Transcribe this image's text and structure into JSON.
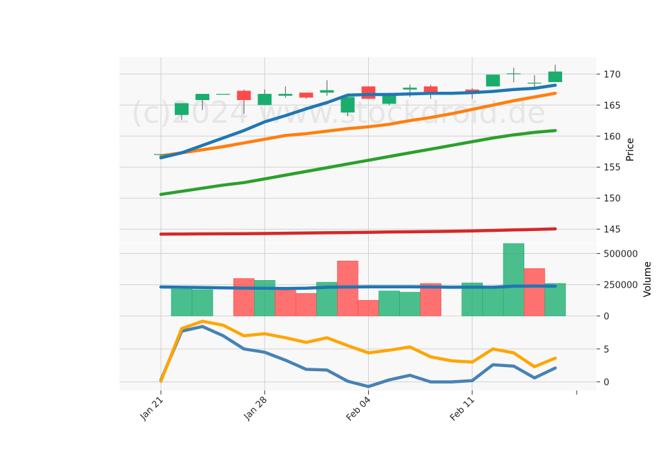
{
  "watermark": "(c)2024 www.stockdroid.de",
  "colors": {
    "up": "#1aad6e",
    "down": "#ff4a4a",
    "sma_short": "#1f77b4",
    "sma_mid": "#ff7f0e",
    "sma_long": "#2ca02c",
    "sma_longest": "#d62728",
    "vol_avg": "#1f77b4",
    "osc_a": "#4682b4",
    "osc_b": "#ffa500",
    "grid": "#d0d0d0",
    "panel_bg": "#f8f8f8"
  },
  "chart_data": [
    {
      "type": "candlestick",
      "ylabel": "Price",
      "ylim": [
        142.8,
        172.7
      ],
      "yticks": [
        145,
        150,
        155,
        160,
        165,
        170
      ],
      "x_labels": [
        "Jan 21",
        "Jan 28",
        "Feb 04",
        "Feb 11"
      ],
      "x_label_index": [
        0,
        5,
        10,
        15
      ],
      "candles": [
        {
          "i": 0,
          "o": 157.1,
          "h": 157.1,
          "l": 157.1,
          "c": 157.1
        },
        {
          "i": 1,
          "o": 163.4,
          "h": 165.3,
          "l": 162.6,
          "c": 165.3
        },
        {
          "i": 2,
          "o": 165.8,
          "h": 166.8,
          "l": 164.2,
          "c": 166.8
        },
        {
          "i": 3,
          "o": 166.8,
          "h": 166.8,
          "l": 166.8,
          "c": 166.8
        },
        {
          "i": 4,
          "o": 167.3,
          "h": 167.5,
          "l": 163.6,
          "c": 165.8
        },
        {
          "i": 5,
          "o": 165.0,
          "h": 167.5,
          "l": 165.0,
          "c": 166.8
        },
        {
          "i": 6,
          "o": 166.5,
          "h": 168.0,
          "l": 166.2,
          "c": 166.8
        },
        {
          "i": 7,
          "o": 167.0,
          "h": 167.0,
          "l": 166.0,
          "c": 166.2
        },
        {
          "i": 8,
          "o": 167.0,
          "h": 169.0,
          "l": 166.5,
          "c": 167.4
        },
        {
          "i": 9,
          "o": 163.8,
          "h": 166.3,
          "l": 163.2,
          "c": 166.3
        },
        {
          "i": 10,
          "o": 168.0,
          "h": 168.0,
          "l": 166.0,
          "c": 166.0
        },
        {
          "i": 11,
          "o": 165.2,
          "h": 167.0,
          "l": 165.0,
          "c": 166.8
        },
        {
          "i": 12,
          "o": 167.5,
          "h": 168.3,
          "l": 166.3,
          "c": 167.8
        },
        {
          "i": 13,
          "o": 168.0,
          "h": 168.3,
          "l": 166.0,
          "c": 167.0
        },
        {
          "i": 15,
          "o": 167.5,
          "h": 167.7,
          "l": 166.0,
          "c": 167.0
        },
        {
          "i": 16,
          "o": 168.0,
          "h": 169.9,
          "l": 168.0,
          "c": 169.9
        },
        {
          "i": 17,
          "o": 170.0,
          "h": 171.0,
          "l": 168.7,
          "c": 170.1
        },
        {
          "i": 18,
          "o": 168.5,
          "h": 169.8,
          "l": 167.6,
          "c": 168.6
        },
        {
          "i": 19,
          "o": 168.7,
          "h": 171.5,
          "l": 168.7,
          "c": 170.4
        }
      ],
      "series": [
        {
          "key": "sma_short",
          "values": [
            156.5,
            157.3,
            158.5,
            159.7,
            160.9,
            162.3,
            163.3,
            164.4,
            165.4,
            166.6,
            166.7,
            166.7,
            166.8,
            166.9,
            166.9,
            167.0,
            167.2,
            167.5,
            167.7,
            168.2
          ]
        },
        {
          "key": "sma_mid",
          "values": [
            156.8,
            157.3,
            157.8,
            158.3,
            158.9,
            159.5,
            160.1,
            160.4,
            160.8,
            161.2,
            161.5,
            161.9,
            162.5,
            163.0,
            163.6,
            164.3,
            165.0,
            165.7,
            166.3,
            166.9
          ]
        },
        {
          "key": "sma_long",
          "values": [
            150.6,
            151.1,
            151.6,
            152.1,
            152.5,
            153.1,
            153.7,
            154.3,
            154.9,
            155.5,
            156.1,
            156.7,
            157.3,
            157.9,
            158.5,
            159.1,
            159.7,
            160.2,
            160.6,
            160.9
          ]
        },
        {
          "key": "sma_longest",
          "values": [
            144.2,
            144.22,
            144.24,
            144.26,
            144.28,
            144.3,
            144.34,
            144.38,
            144.42,
            144.46,
            144.5,
            144.54,
            144.58,
            144.62,
            144.66,
            144.72,
            144.8,
            144.88,
            144.96,
            145.04
          ]
        }
      ]
    },
    {
      "type": "bar",
      "ylabel": "Volume",
      "ylim": [
        0,
        580000
      ],
      "yticks": [
        0,
        250000,
        500000
      ],
      "bars": [
        {
          "i": 1,
          "v": 215000,
          "dir": "up"
        },
        {
          "i": 2,
          "v": 210000,
          "dir": "up"
        },
        {
          "i": 4,
          "v": 300000,
          "dir": "down"
        },
        {
          "i": 5,
          "v": 285000,
          "dir": "up"
        },
        {
          "i": 6,
          "v": 205000,
          "dir": "down"
        },
        {
          "i": 7,
          "v": 180000,
          "dir": "down"
        },
        {
          "i": 8,
          "v": 270000,
          "dir": "up"
        },
        {
          "i": 9,
          "v": 440000,
          "dir": "down"
        },
        {
          "i": 10,
          "v": 125000,
          "dir": "down"
        },
        {
          "i": 11,
          "v": 200000,
          "dir": "up"
        },
        {
          "i": 12,
          "v": 190000,
          "dir": "up"
        },
        {
          "i": 13,
          "v": 260000,
          "dir": "down"
        },
        {
          "i": 15,
          "v": 265000,
          "dir": "up"
        },
        {
          "i": 16,
          "v": 230000,
          "dir": "up"
        },
        {
          "i": 17,
          "v": 580000,
          "dir": "up"
        },
        {
          "i": 18,
          "v": 380000,
          "dir": "down"
        },
        {
          "i": 19,
          "v": 260000,
          "dir": "up"
        }
      ],
      "series": [
        {
          "key": "vol_avg",
          "values": [
            232000,
            230000,
            228000,
            225000,
            223000,
            222000,
            220000,
            222000,
            230000,
            232000,
            233000,
            233000,
            233000,
            232000,
            230000,
            231000,
            230000,
            238000,
            240000,
            238000
          ]
        }
      ]
    },
    {
      "type": "line",
      "ylim": [
        -1.3,
        9.9
      ],
      "yticks": [
        0,
        5
      ],
      "series": [
        {
          "key": "osc_a",
          "values": [
            0.3,
            7.7,
            8.4,
            7.0,
            5.0,
            4.5,
            3.3,
            1.9,
            1.8,
            0.1,
            -0.7,
            0.3,
            1.0,
            0.0,
            0.0,
            0.2,
            2.6,
            2.4,
            0.6,
            2.1
          ]
        },
        {
          "key": "osc_b",
          "values": [
            0.1,
            8.1,
            9.2,
            8.6,
            7.0,
            7.3,
            6.7,
            6.0,
            6.7,
            5.5,
            4.4,
            4.8,
            5.3,
            3.8,
            3.2,
            3.0,
            5.0,
            4.4,
            2.3,
            3.6
          ]
        }
      ]
    }
  ]
}
